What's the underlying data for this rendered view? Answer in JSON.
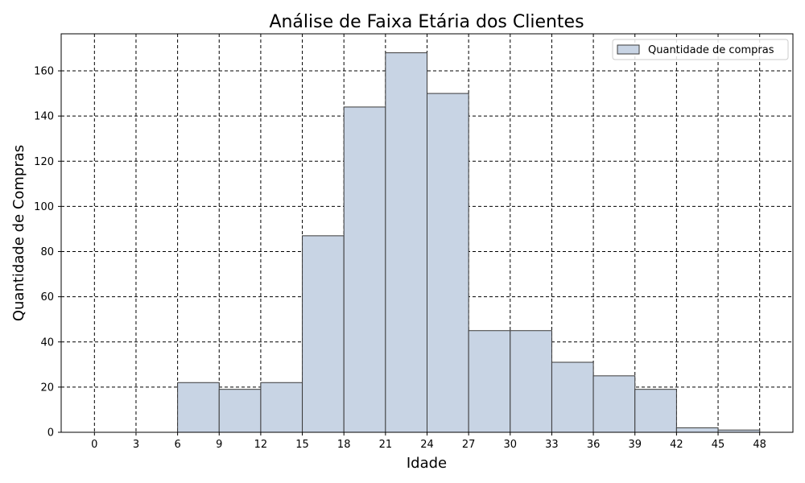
{
  "chart_data": {
    "type": "bar",
    "title": "Análise de Faixa Etária dos Clientes",
    "xlabel": "Idade",
    "ylabel": "Quantidade de Compras",
    "bin_edges": [
      0,
      3,
      6,
      9,
      12,
      15,
      18,
      21,
      24,
      27,
      30,
      33,
      36,
      39,
      42,
      45,
      48
    ],
    "values": [
      0,
      0,
      22,
      19,
      22,
      87,
      144,
      168,
      150,
      45,
      45,
      31,
      25,
      19,
      2,
      1
    ],
    "series": [
      {
        "name": "Quantidade de compras",
        "values": [
          0,
          0,
          22,
          19,
          22,
          87,
          144,
          168,
          150,
          45,
          45,
          31,
          25,
          19,
          2,
          1
        ]
      }
    ],
    "xticks": [
      "0",
      "3",
      "6",
      "9",
      "12",
      "15",
      "18",
      "21",
      "24",
      "27",
      "30",
      "33",
      "36",
      "39",
      "42",
      "45",
      "48"
    ],
    "yticks": [
      "0",
      "20",
      "40",
      "60",
      "80",
      "100",
      "120",
      "140",
      "160"
    ],
    "xlim": [
      -2.4,
      50.4
    ],
    "ylim": [
      0,
      176.4
    ],
    "grid": true,
    "legend_position": "top-right",
    "colors": {
      "bar_fill": "#c8d4e4",
      "bar_edge": "#3a3a3a",
      "grid": "#000000"
    }
  }
}
